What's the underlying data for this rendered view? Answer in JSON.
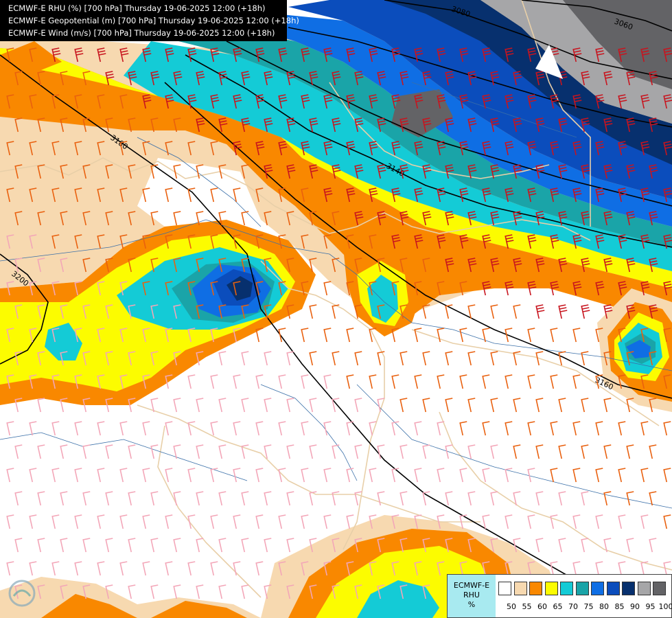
{
  "header": {
    "line1": "ECMWF-E RHU (%) [700 hPa] Thursday 19-06-2025 12:00 (+18h)",
    "line2": "ECMWF-E Geopotential (m) [700 hPa] Thursday 19-06-2025 12:00 (+18h)",
    "line3": "ECMWF-E Wind (m/s) [700 hPa] Thursday 19-06-2025 12:00 (+18h)"
  },
  "legend": {
    "title_model": "ECMWF-E",
    "title_var": "RHU",
    "title_unit": "%",
    "levels": [
      "50",
      "55",
      "60",
      "65",
      "70",
      "75",
      "80",
      "85",
      "90",
      "95",
      "100"
    ],
    "colors": [
      "#ffffff",
      "#f7d9b0",
      "#f98800",
      "#fcfc00",
      "#14cbd6",
      "#1aa4a8",
      "#0f6ee4",
      "#0b4dbc",
      "#07306e",
      "#a6a6a8",
      "#636366"
    ]
  },
  "contours": {
    "labels": [
      "3060",
      "3080",
      "3140",
      "3160",
      "3180",
      "3200"
    ]
  },
  "watermark": {
    "icon": "wave-logo-icon"
  }
}
